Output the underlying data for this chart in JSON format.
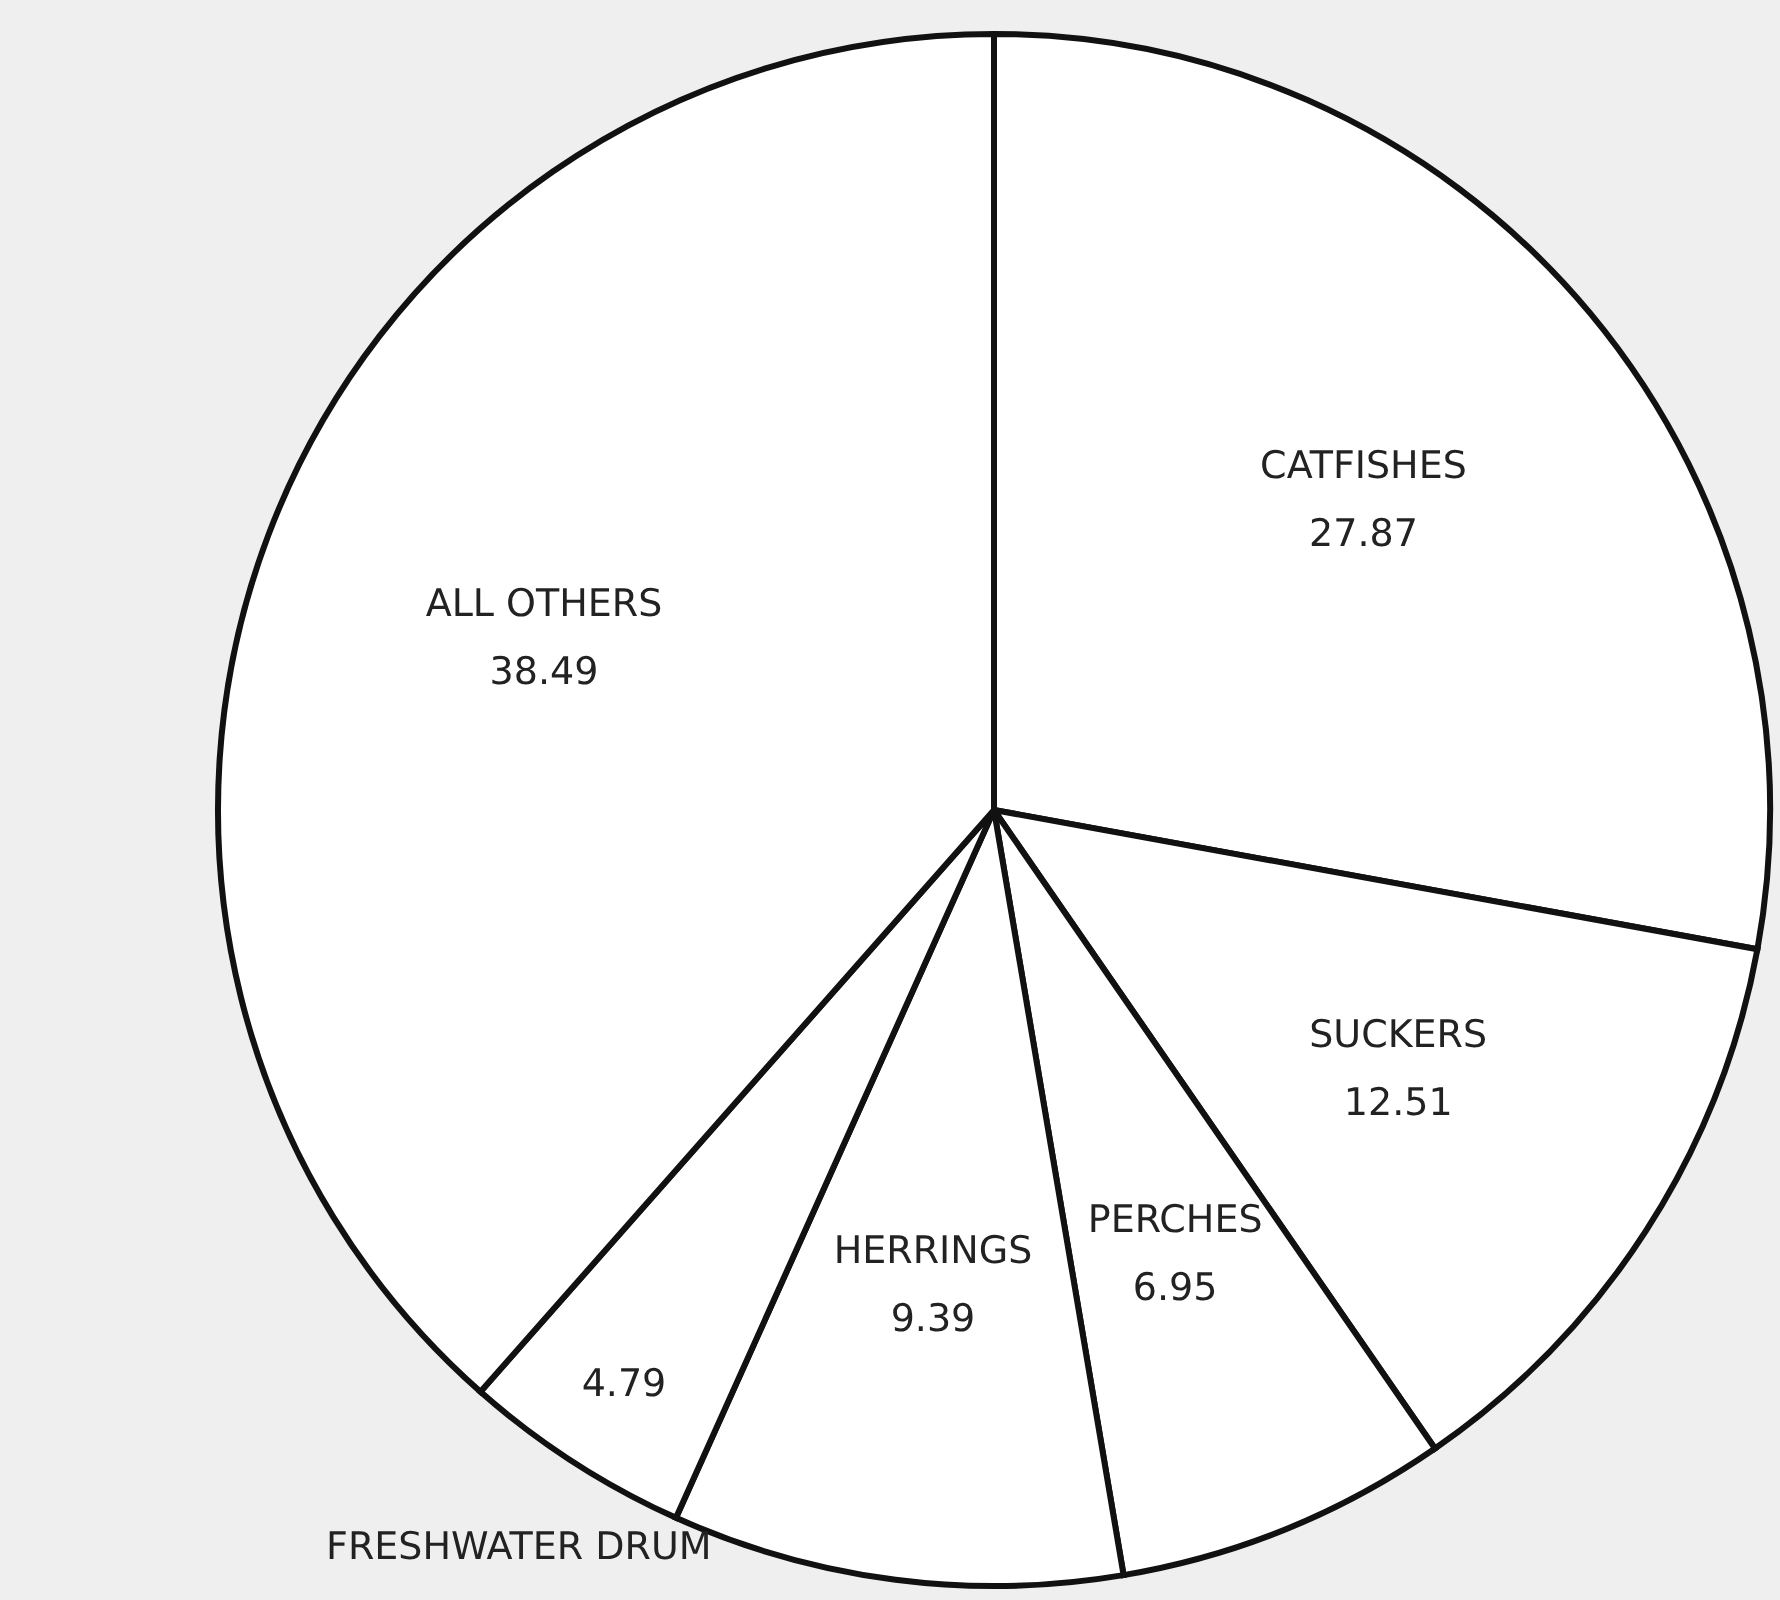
{
  "chart_data": {
    "type": "pie",
    "categories": [
      "CATFISHES",
      "SUCKERS",
      "PERCHES",
      "HERRINGS",
      "FRESHWATER DRUM",
      "ALL OTHERS"
    ],
    "values": [
      27.87,
      12.51,
      6.95,
      9.39,
      4.79,
      38.49
    ],
    "colors": [
      "#ffffff",
      "#ffffff",
      "#ffffff",
      "#ffffff",
      "#ffffff",
      "#ffffff"
    ],
    "data_labels": true
  }
}
